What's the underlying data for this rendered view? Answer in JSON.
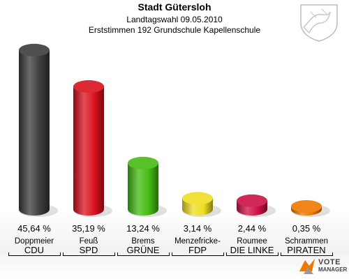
{
  "header": {
    "title": "Stadt Gütersloh",
    "subtitle": "Landtagswahl 09.05.2010",
    "subsubtitle": "Erststimmen 192 Grundschule Kapellenschule"
  },
  "chart_data": {
    "type": "bar",
    "categories": [
      "CDU",
      "SPD",
      "GRÜNE",
      "FDP",
      "DIE LINKE",
      "PIRATEN"
    ],
    "candidates": [
      "Doppmeier",
      "Feuß",
      "Brems",
      "Menzefricke-",
      "Roumee",
      "Schrammen"
    ],
    "values": [
      45.64,
      35.19,
      13.24,
      3.14,
      2.44,
      0.35
    ],
    "value_labels": [
      "45,64 %",
      "35,19 %",
      "13,24 %",
      "3,14 %",
      "2,44 %",
      "0,35 %"
    ],
    "colors": [
      "#3b3b3b",
      "#d8121f",
      "#44bb11",
      "#eedd22",
      "#cc1144",
      "#ee7700"
    ],
    "ylim": [
      0,
      48
    ]
  },
  "logo": {
    "line1": "VOTE",
    "line2": "MANAGER"
  }
}
